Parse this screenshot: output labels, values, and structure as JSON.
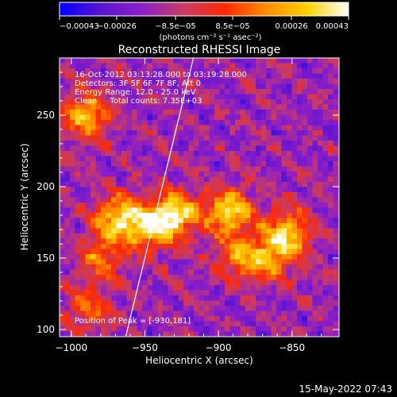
{
  "chart_data": {
    "type": "heatmap",
    "title": "Reconstructed RHESSI Image",
    "xlabel": "Heliocentric X (arcsec)",
    "ylabel": "Heliocentric Y (arcsec)",
    "xlim": [
      -1008,
      -818
    ],
    "ylim": [
      95,
      290
    ],
    "x_ticks": [
      -1000,
      -950,
      -900,
      -850
    ],
    "x_tick_labels": [
      "−1000",
      "−950",
      "−900",
      "−850"
    ],
    "y_ticks": [
      100,
      150,
      200,
      250
    ],
    "y_tick_labels": [
      "100",
      "150",
      "200",
      "250"
    ],
    "colorbar": {
      "min": -0.00043,
      "max": 0.00043,
      "ticks": [
        -0.00043,
        -0.00026,
        -8.5e-05,
        8.5e-05,
        0.00026,
        0.00043
      ],
      "tick_labels": [
        "−0.00043",
        "−0.00026",
        "−8.5e−05",
        "8.5e−05",
        "0.00026",
        "0.00043"
      ],
      "label": "(photons cm⁻² s⁻¹ asec⁻²)",
      "colors": [
        "#0000ff",
        "#5a14d2",
        "#8c1ec8",
        "#c83c64",
        "#ff2800",
        "#ff8c00",
        "#ffd200",
        "#ffffff"
      ]
    },
    "annotations": [
      "16-Oct-2012 03:13:28.000 to 03:19:28.000",
      "Detectors: 3F 5F 6F 7F 8F, Att 0",
      "Energy Range: 12.0 - 25.0 keV",
      "Clean     Total counts: 7.35E+03"
    ],
    "peak_label": "Position of Peak = [-930,181]",
    "limb_line": {
      "x1": -963,
      "y1": 95,
      "x2": -917,
      "y2": 290
    },
    "sources": [
      {
        "x": -930,
        "y": 181,
        "strength": 1.0
      },
      {
        "x": -893,
        "y": 183,
        "strength": 0.95
      },
      {
        "x": -947,
        "y": 170,
        "strength": 0.75
      },
      {
        "x": -968,
        "y": 178,
        "strength": 0.9
      },
      {
        "x": -853,
        "y": 168,
        "strength": 0.85
      },
      {
        "x": -885,
        "y": 150,
        "strength": 0.65
      },
      {
        "x": -863,
        "y": 150,
        "strength": 0.6
      },
      {
        "x": -990,
        "y": 250,
        "strength": 0.8
      },
      {
        "x": -980,
        "y": 150,
        "strength": 0.55
      },
      {
        "x": -988,
        "y": 115,
        "strength": 0.5
      }
    ]
  },
  "footer": {
    "timestamp": "15-May-2022 07:43"
  }
}
